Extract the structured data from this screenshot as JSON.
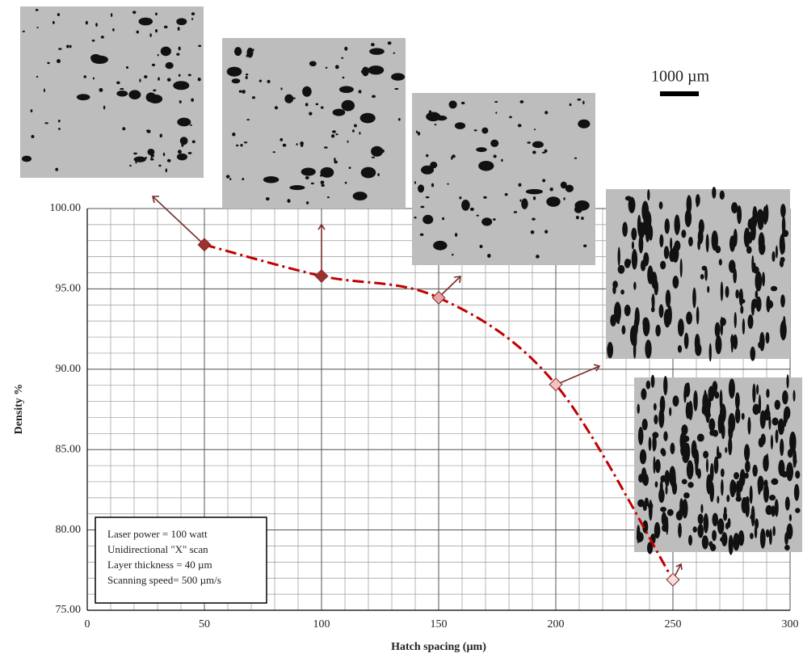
{
  "chart_data": {
    "type": "line",
    "xlabel": "Hatch spacing (µm)",
    "ylabel": "Density %",
    "x": [
      50,
      100,
      150,
      200,
      250
    ],
    "series": [
      {
        "color": "#c00000",
        "values": [
          97.75,
          95.8,
          94.45,
          89.05,
          76.9
        ],
        "marker_colors": [
          "#a0302e",
          "#a0302e",
          "#e9a3a3",
          "#f3c2c2",
          "#fadcdc"
        ]
      }
    ],
    "xlim": [
      0,
      300
    ],
    "xticks": [
      0,
      50,
      100,
      150,
      200,
      250,
      300
    ],
    "ylim": [
      75,
      100
    ],
    "yticks": [
      {
        "value": 75,
        "label": "75.00"
      },
      {
        "value": 80,
        "label": "80.00"
      },
      {
        "value": 85,
        "label": "85.00"
      },
      {
        "value": 90,
        "label": "90.00"
      },
      {
        "value": 95,
        "label": "95.00"
      },
      {
        "value": 100,
        "label": "100.00"
      }
    ],
    "grid": true,
    "minor_xstep": 10,
    "minor_ystep": 1,
    "annotation": [
      "Laser power = 100 watt",
      "Unidirectional \"X\" scan",
      "Layer thickness = 40 µm",
      "Scanning speed= 500 µm/s"
    ],
    "scale_bar": "1000 µm"
  }
}
